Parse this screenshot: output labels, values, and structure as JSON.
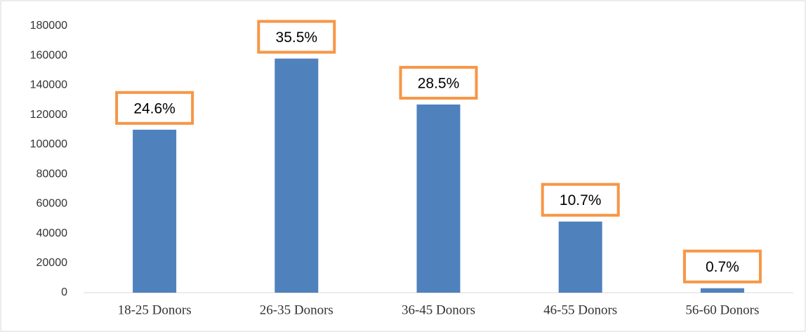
{
  "chart_data": {
    "type": "bar",
    "categories": [
      "18-25 Donors",
      "26-35 Donors",
      "36-45 Donors",
      "46-55 Donors",
      "56-60 Donors"
    ],
    "values": [
      110000,
      158000,
      127000,
      48000,
      3000
    ],
    "color": "#4f81bd",
    "annotations": [
      {
        "value": 24.6,
        "label": "24.6%"
      },
      {
        "value": 35.5,
        "label": "35.5%"
      },
      {
        "value": 28.5,
        "label": "28.5%"
      },
      {
        "value": 10.7,
        "label": "10.7%"
      },
      {
        "value": 0.7,
        "label": "0.7%"
      }
    ],
    "annotation_color": "#f79646",
    "ylim": [
      0,
      180000
    ],
    "yticks": [
      0,
      20000,
      40000,
      60000,
      80000,
      100000,
      120000,
      140000,
      160000,
      180000
    ],
    "grid": false
  }
}
